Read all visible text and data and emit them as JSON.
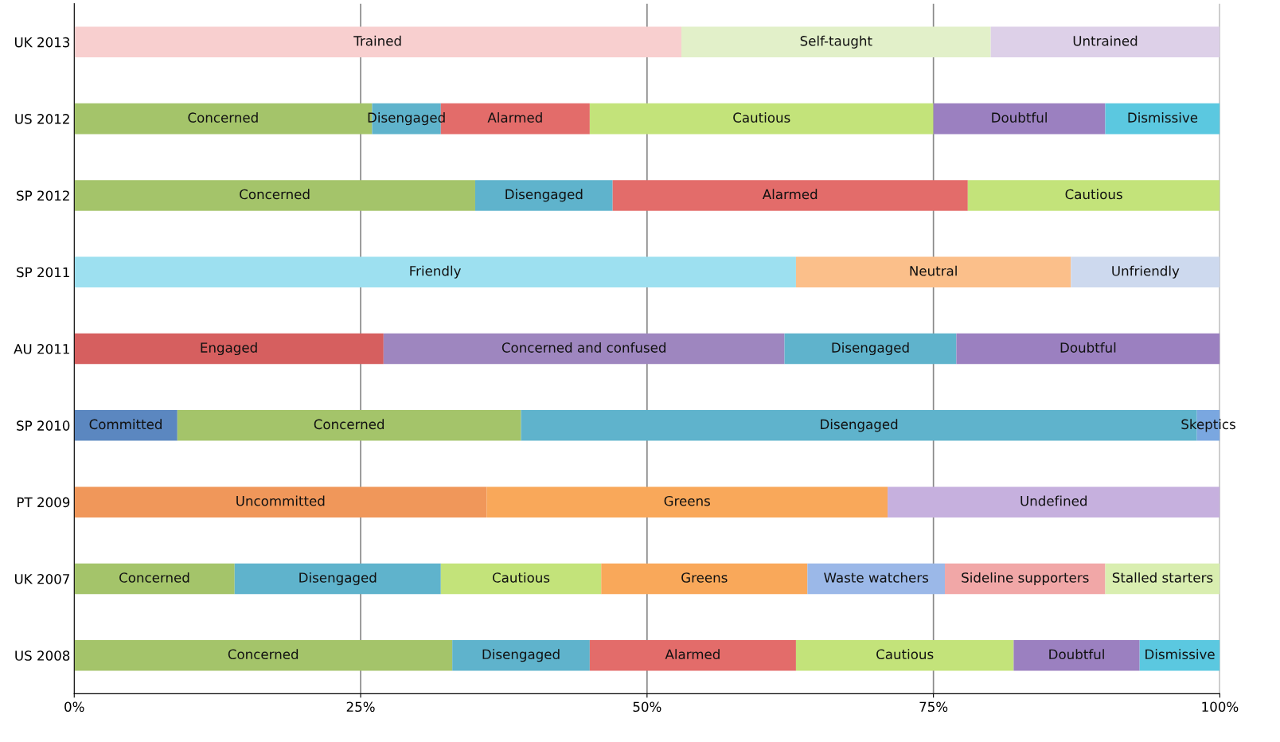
{
  "chart_data": {
    "type": "bar",
    "orientation": "horizontal",
    "stacked": true,
    "grid": "x",
    "categories": [
      "UK 2013",
      "US 2012",
      "SP 2012",
      "SP 2011",
      "AU 2011",
      "SP 2010",
      "PT 2009",
      "UK 2007",
      "US 2008"
    ],
    "xlim": [
      0,
      100
    ],
    "xticks": [
      {
        "value": 0,
        "label": "0%"
      },
      {
        "value": 25,
        "label": "25%"
      },
      {
        "value": 50,
        "label": "50%"
      },
      {
        "value": 75,
        "label": "75%"
      },
      {
        "value": 100,
        "label": "100%"
      }
    ],
    "series": [
      {
        "values": [
          53,
          26,
          35,
          63,
          27,
          9,
          36,
          14,
          33
        ],
        "value_labels": [
          "Trained",
          "Concerned",
          "Concerned",
          "Friendly",
          "Engaged",
          "Committed",
          "Uncommitted",
          "Concerned",
          "Concerned"
        ],
        "colors": [
          "#f8cfcf",
          "#a4c46a",
          "#a4c46a",
          "#9de0f0",
          "#d65f5f",
          "#5b87c0",
          "#f0975a",
          "#a4c46a",
          "#a4c46a"
        ]
      },
      {
        "values": [
          27,
          6,
          12,
          24,
          35,
          30,
          35,
          18,
          12
        ],
        "value_labels": [
          "Self-taught",
          "Disengaged",
          "Disengaged",
          "Neutral",
          "Concerned and confused",
          "Concerned",
          "Greens",
          "Disengaged",
          "Disengaged"
        ],
        "colors": [
          "#e2f0c9",
          "#5fb3cc",
          "#5fb3cc",
          "#fbbf8a",
          "#9e86bf",
          "#a4c46a",
          "#f9a85a",
          "#5fb3cc",
          "#5fb3cc"
        ]
      },
      {
        "values": [
          20,
          13,
          31,
          13,
          15,
          59,
          29,
          14,
          18
        ],
        "value_labels": [
          "Untrained",
          "Alarmed",
          "Alarmed",
          "Unfriendly",
          "Disengaged",
          "Disengaged",
          "Undefined",
          "Cautious",
          "Alarmed"
        ],
        "colors": [
          "#ddd0e8",
          "#e36c6a",
          "#e36c6a",
          "#cdd9ee",
          "#5fb3cc",
          "#5fb3cc",
          "#c6b0de",
          "#c3e37a",
          "#e36c6a"
        ]
      },
      {
        "values": [
          null,
          30,
          22,
          null,
          23,
          2,
          null,
          18,
          19
        ],
        "value_labels": [
          null,
          "Cautious",
          "Cautious",
          null,
          "Doubtful",
          "Skeptics",
          null,
          "Greens",
          "Cautious"
        ],
        "colors": [
          null,
          "#c3e37a",
          "#c3e37a",
          null,
          "#9b80c0",
          "#7aa7e0",
          null,
          "#f9a85a",
          "#c3e37a"
        ]
      },
      {
        "values": [
          null,
          15,
          null,
          null,
          null,
          null,
          null,
          12,
          11
        ],
        "value_labels": [
          null,
          "Doubtful",
          null,
          null,
          null,
          null,
          null,
          "Waste watchers",
          "Doubtful"
        ],
        "colors": [
          null,
          "#9b80c0",
          null,
          null,
          null,
          null,
          null,
          "#9bb8e8",
          "#9b80c0"
        ]
      },
      {
        "values": [
          null,
          10,
          null,
          null,
          null,
          null,
          null,
          14,
          7
        ],
        "value_labels": [
          null,
          "Dismissive",
          null,
          null,
          null,
          null,
          null,
          "Sideline supporters",
          "Dismissive"
        ],
        "colors": [
          null,
          "#5bc8e0",
          null,
          null,
          null,
          null,
          null,
          "#f1a7a7",
          "#5bc8e0"
        ]
      },
      {
        "values": [
          null,
          null,
          null,
          null,
          null,
          null,
          null,
          10,
          null
        ],
        "value_labels": [
          null,
          null,
          null,
          null,
          null,
          null,
          null,
          "Stalled starters",
          null
        ],
        "colors": [
          null,
          null,
          null,
          null,
          null,
          null,
          null,
          "#d9eeb0",
          null
        ]
      }
    ]
  }
}
